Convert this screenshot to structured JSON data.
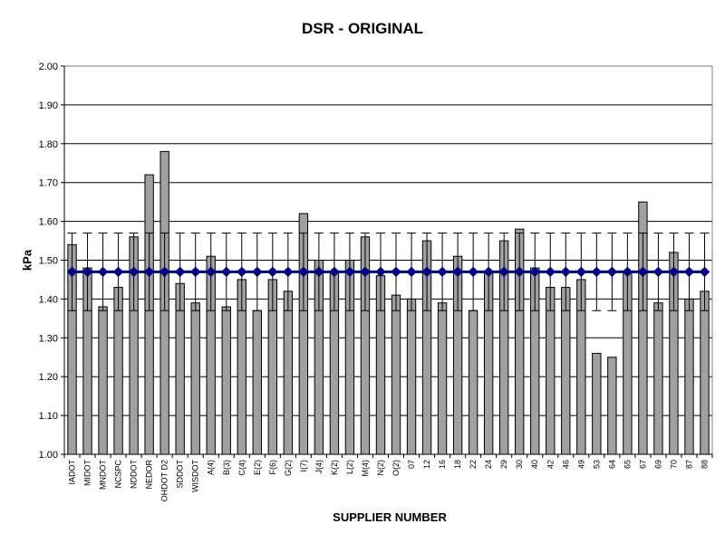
{
  "chart_data": {
    "type": "bar",
    "title": "DSR - ORIGINAL",
    "xlabel": "SUPPLIER NUMBER",
    "ylabel": "kPa",
    "ylim": [
      1.0,
      2.0
    ],
    "yticks": [
      "1.00",
      "1.10",
      "1.20",
      "1.30",
      "1.40",
      "1.50",
      "1.60",
      "1.70",
      "1.80",
      "1.90",
      "2.00"
    ],
    "grid": "horizontal",
    "categories": [
      "IADOT",
      "MIDOT",
      "MNDOT",
      "NCSPC",
      "NDDOT",
      "NEDOR",
      "OHDOT D2",
      "SDDOT",
      "WISDOT",
      "A(4)",
      "B(3)",
      "C(4)",
      "E(2)",
      "F(6)",
      "G(2)",
      "I(7)",
      "J(4)",
      "K(2)",
      "L(2)",
      "M(4)",
      "N(2)",
      "O(2)",
      "07",
      "12",
      "16",
      "18",
      "22",
      "24",
      "29",
      "30",
      "40",
      "42",
      "46",
      "49",
      "53",
      "64",
      "65",
      "67",
      "69",
      "70",
      "87",
      "88"
    ],
    "series": [
      {
        "type": "bar",
        "color": "#a0a0a0",
        "values": [
          1.54,
          1.48,
          1.38,
          1.43,
          1.56,
          1.72,
          1.78,
          1.44,
          1.39,
          1.51,
          1.38,
          1.45,
          1.37,
          1.45,
          1.42,
          1.62,
          1.5,
          1.47,
          1.5,
          1.56,
          1.46,
          1.41,
          1.4,
          1.55,
          1.39,
          1.51,
          1.37,
          1.47,
          1.55,
          1.58,
          1.48,
          1.43,
          1.43,
          1.45,
          1.26,
          1.25,
          1.47,
          1.65,
          1.39,
          1.52,
          1.4,
          1.42
        ],
        "error_bar": {
          "plus": 0.1,
          "minus": 0.1,
          "about": "mean"
        }
      },
      {
        "type": "line",
        "color": "#000080",
        "marker": "diamond",
        "value": 1.47
      }
    ]
  }
}
